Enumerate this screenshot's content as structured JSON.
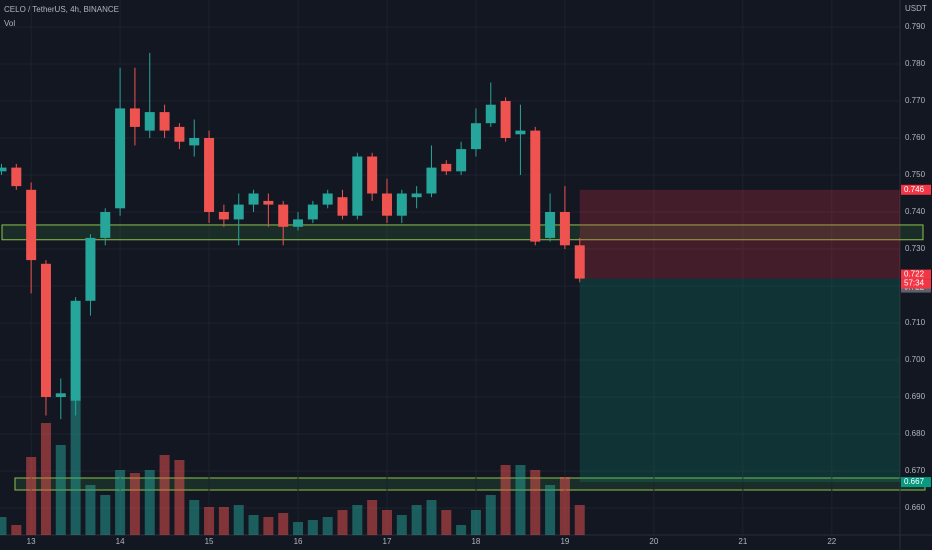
{
  "chart_data": {
    "type": "candlestick",
    "title": "CELO / TetherUS, 4h, BINANCE",
    "volume_label": "Vol",
    "y_axis_label": "USDT",
    "up_color": "#26a69a",
    "down_color": "#ef5350",
    "x": [
      0,
      1,
      2,
      3,
      4,
      5,
      6,
      7,
      8,
      9,
      10,
      11,
      12,
      13,
      14,
      15,
      16,
      17,
      18,
      19,
      20,
      21,
      22,
      23,
      24,
      25,
      26,
      27,
      28,
      29,
      30,
      31,
      32,
      33,
      34,
      35,
      36,
      37,
      38,
      39
    ],
    "open": [
      0.751,
      0.752,
      0.746,
      0.726,
      0.69,
      0.689,
      0.716,
      0.733,
      0.741,
      0.768,
      0.762,
      0.767,
      0.763,
      0.758,
      0.76,
      0.74,
      0.738,
      0.742,
      0.743,
      0.742,
      0.736,
      0.738,
      0.742,
      0.744,
      0.739,
      0.755,
      0.745,
      0.739,
      0.744,
      0.745,
      0.753,
      0.751,
      0.757,
      0.764,
      0.77,
      0.761,
      0.762,
      0.733,
      0.74,
      0.731
    ],
    "high": [
      0.753,
      0.753,
      0.748,
      0.727,
      0.695,
      0.717,
      0.734,
      0.741,
      0.779,
      0.779,
      0.783,
      0.769,
      0.764,
      0.765,
      0.762,
      0.742,
      0.745,
      0.746,
      0.745,
      0.743,
      0.74,
      0.743,
      0.746,
      0.746,
      0.756,
      0.756,
      0.749,
      0.746,
      0.747,
      0.758,
      0.754,
      0.759,
      0.768,
      0.775,
      0.771,
      0.769,
      0.763,
      0.745,
      0.747,
      0.733
    ],
    "low": [
      0.75,
      0.746,
      0.718,
      0.685,
      0.684,
      0.685,
      0.712,
      0.731,
      0.739,
      0.758,
      0.76,
      0.76,
      0.757,
      0.755,
      0.737,
      0.736,
      0.731,
      0.74,
      0.736,
      0.731,
      0.735,
      0.737,
      0.741,
      0.738,
      0.738,
      0.743,
      0.737,
      0.737,
      0.741,
      0.744,
      0.75,
      0.75,
      0.755,
      0.763,
      0.759,
      0.75,
      0.731,
      0.732,
      0.73,
      0.721
    ],
    "close": [
      0.752,
      0.747,
      0.727,
      0.69,
      0.691,
      0.716,
      0.733,
      0.74,
      0.768,
      0.763,
      0.767,
      0.762,
      0.759,
      0.76,
      0.74,
      0.738,
      0.742,
      0.745,
      0.742,
      0.736,
      0.738,
      0.742,
      0.745,
      0.739,
      0.755,
      0.745,
      0.739,
      0.745,
      0.745,
      0.752,
      0.751,
      0.757,
      0.764,
      0.769,
      0.76,
      0.762,
      0.732,
      0.74,
      0.731,
      0.722
    ],
    "volume": [
      18,
      10,
      78,
      112,
      90,
      135,
      50,
      40,
      65,
      62,
      65,
      80,
      75,
      35,
      28,
      28,
      30,
      20,
      18,
      22,
      13,
      15,
      18,
      25,
      30,
      35,
      25,
      20,
      30,
      35,
      25,
      10,
      25,
      40,
      70,
      70,
      65,
      50,
      58,
      30
    ],
    "vlim": [
      0,
      150
    ],
    "xlim": [
      -0.1,
      60.6
    ],
    "xticks": [
      {
        "value": 2,
        "label": "13"
      },
      {
        "value": 8,
        "label": "14"
      },
      {
        "value": 14,
        "label": "15"
      },
      {
        "value": 20,
        "label": "16"
      },
      {
        "value": 26,
        "label": "17"
      },
      {
        "value": 32,
        "label": "18"
      },
      {
        "value": 38,
        "label": "19"
      },
      {
        "value": 44,
        "label": "20"
      },
      {
        "value": 50,
        "label": "21"
      },
      {
        "value": 56,
        "label": "22"
      }
    ],
    "ylim": [
      0.6527,
      0.7973
    ],
    "yticks": [
      {
        "value": 0.66,
        "label": "0.660"
      },
      {
        "value": 0.67,
        "label": "0.670"
      },
      {
        "value": 0.68,
        "label": "0.680"
      },
      {
        "value": 0.69,
        "label": "0.690"
      },
      {
        "value": 0.7,
        "label": "0.700"
      },
      {
        "value": 0.71,
        "label": "0.710"
      },
      {
        "value": 0.72,
        "label": "0.720"
      },
      {
        "value": 0.73,
        "label": "0.730"
      },
      {
        "value": 0.74,
        "label": "0.740"
      },
      {
        "value": 0.75,
        "label": "0.750"
      },
      {
        "value": 0.76,
        "label": "0.760"
      },
      {
        "value": 0.77,
        "label": "0.770"
      },
      {
        "value": 0.78,
        "label": "0.780"
      },
      {
        "value": 0.79,
        "label": "0.790"
      }
    ],
    "grid": true,
    "zone": {
      "low": 0.7325,
      "high": 0.7365
    },
    "position": {
      "start": 39,
      "entry": 0.722,
      "stop": 0.746,
      "target": 0.667
    },
    "price_labels": [
      {
        "value": 0.746,
        "label": "0.746",
        "color": "#f23645"
      },
      {
        "value": 0.722,
        "label": "0.722",
        "color": "#f23645"
      },
      {
        "value": 0.722,
        "label": "0.722",
        "color": "#5d606b"
      },
      {
        "value": 0.667,
        "label": "0.667",
        "color": "#089981"
      }
    ],
    "countdown": "57:34"
  }
}
